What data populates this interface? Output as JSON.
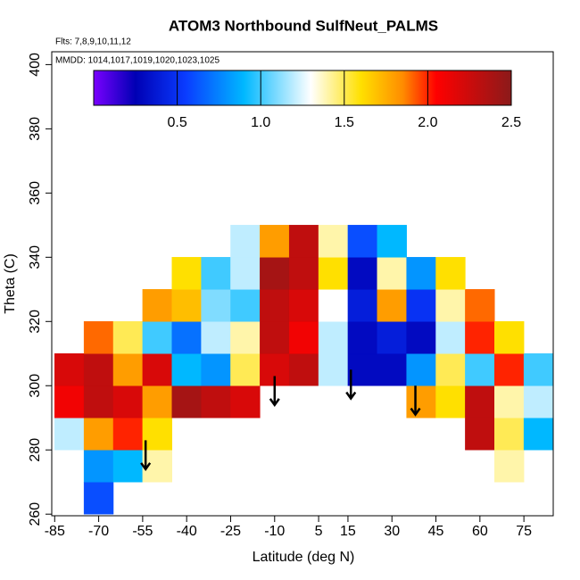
{
  "chart_data": {
    "type": "heatmap",
    "title": "ATOM3 Northbound SulfNeut_PALMS",
    "annotations": [
      "Flts: 7,8,9,10,11,12",
      "MMDD: 1014,1017,1019,1020,1023,1025"
    ],
    "x_label": "Latitude (deg N)",
    "y_label": "Theta (C)",
    "x": [
      -80,
      -70,
      -60,
      -50,
      -40,
      -30,
      -20,
      -10,
      0,
      10,
      20,
      30,
      40,
      50,
      60,
      70,
      80
    ],
    "y": [
      265,
      275,
      285,
      295,
      305,
      315,
      325,
      335,
      345
    ],
    "values": [
      [
        null,
        0.6,
        null,
        null,
        null,
        null,
        null,
        null,
        null,
        null,
        null,
        null,
        null,
        null,
        null,
        null,
        null
      ],
      [
        null,
        0.8,
        0.9,
        1.4,
        null,
        null,
        null,
        null,
        null,
        null,
        null,
        null,
        null,
        null,
        null,
        1.4,
        null
      ],
      [
        1.2,
        1.8,
        2.0,
        1.6,
        null,
        null,
        null,
        null,
        null,
        null,
        null,
        null,
        null,
        null,
        2.3,
        1.5,
        0.9
      ],
      [
        2.1,
        2.3,
        2.2,
        1.8,
        2.4,
        2.3,
        2.2,
        null,
        null,
        null,
        null,
        null,
        1.8,
        1.6,
        2.3,
        1.4,
        1.2
      ],
      [
        2.2,
        2.3,
        1.8,
        2.2,
        0.9,
        0.8,
        1.5,
        2.2,
        2.3,
        1.2,
        0.3,
        0.3,
        0.8,
        1.5,
        1.0,
        2.0,
        1.0
      ],
      [
        null,
        1.9,
        1.5,
        1.0,
        0.7,
        1.2,
        1.4,
        2.3,
        2.1,
        1.2,
        0.3,
        0.4,
        0.3,
        1.2,
        2.0,
        1.6,
        null
      ],
      [
        null,
        null,
        null,
        1.8,
        1.7,
        1.1,
        1.0,
        2.3,
        2.2,
        1.3,
        0.4,
        1.8,
        0.5,
        1.4,
        1.9,
        null,
        null
      ],
      [
        null,
        null,
        null,
        null,
        1.6,
        1.0,
        1.2,
        2.4,
        2.3,
        1.6,
        0.3,
        1.4,
        0.8,
        1.6,
        null,
        null,
        null
      ],
      [
        null,
        null,
        null,
        null,
        null,
        null,
        1.2,
        1.8,
        2.3,
        1.4,
        0.6,
        0.9,
        null,
        null,
        null,
        null,
        null
      ]
    ],
    "cell_width": 10,
    "cell_height": 10,
    "xlim": [
      -86,
      85
    ],
    "ylim": [
      259.5,
      404
    ],
    "xticks": [
      -85,
      -70,
      -55,
      -40,
      -25,
      -10,
      5,
      15,
      30,
      45,
      60,
      75
    ],
    "yticks": [
      260,
      280,
      300,
      320,
      340,
      360,
      380,
      400
    ],
    "colorbar": {
      "lim": [
        0,
        2.5
      ],
      "ticks": [
        0.5,
        {
          "value": 1,
          "label": "1.0"
        },
        1.5,
        {
          "value": 2,
          "label": "2.0"
        },
        2.5
      ]
    },
    "colormap": [
      [
        0,
        "#7a00ff"
      ],
      [
        0.25,
        "#0000b4"
      ],
      [
        0.55,
        "#0a3cff"
      ],
      [
        0.9,
        "#00b8ff"
      ],
      [
        1.3,
        "#ffffff"
      ],
      [
        1.6,
        "#ffe000"
      ],
      [
        1.85,
        "#ff8c00"
      ],
      [
        2.05,
        "#ff0000"
      ],
      [
        2.5,
        "#8b1a1a"
      ]
    ]
  }
}
